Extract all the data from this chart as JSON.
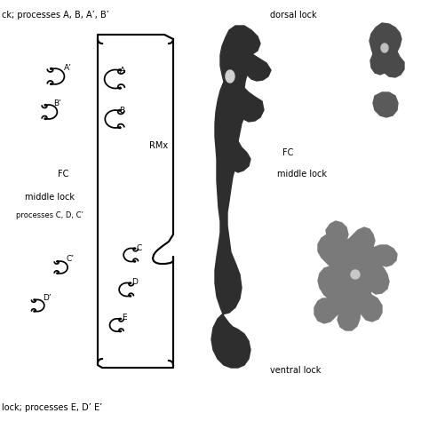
{
  "bg_color": "#ffffff",
  "text_color": "#000000",
  "line_color": "#000000",
  "title_top_left": "ck; processes A, B, A’, B’",
  "title_bottom_left": "lock; processes E, D’ E’",
  "label_RMx": "RMx",
  "label_FC_left": "FC",
  "label_middle_lock_left": "middle lock",
  "label_processes_CD": "processes C, D, C’",
  "label_FC_right": "FC",
  "label_middle_lock_right": "middle lock",
  "label_dorsal": "dorsal lock",
  "label_ventral": "ventral lock",
  "label_A": "A",
  "label_B": "B",
  "label_Ap": "A’",
  "label_Bp": "B’",
  "label_C": "C",
  "label_Cp": "C’",
  "label_D": "D",
  "label_Dp": "D’",
  "label_E": "E",
  "font_size_main": 7.0,
  "font_size_labels": 6.5,
  "line_width": 1.1
}
